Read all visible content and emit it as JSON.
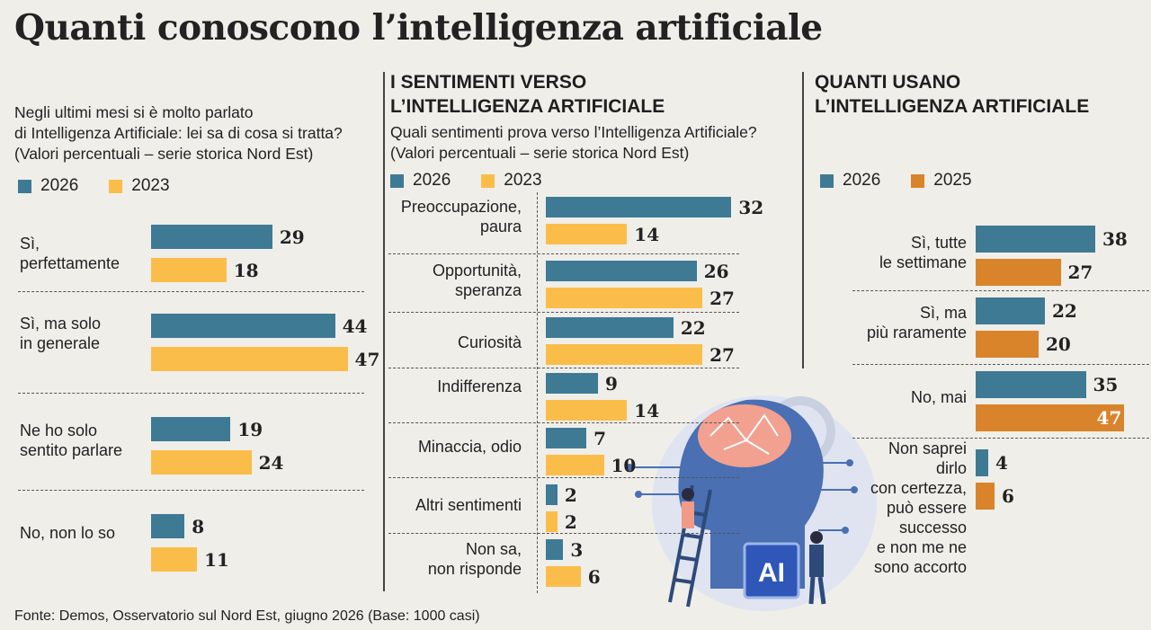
{
  "title": "Quanti conoscono l’intelligenza artificiale",
  "source": "Fonte: Demos, Osservatorio sul Nord Est, giugno 2026 (Base: 1000 casi)",
  "colors": {
    "teal": "#3e7a94",
    "yellow": "#fbbd4a",
    "orange": "#d9832b",
    "bg": "#efeee9"
  },
  "illustration": {
    "label": "AI"
  },
  "chart_data": [
    {
      "type": "bar",
      "orientation": "horizontal",
      "question": "Negli ultimi mesi si è molto parlato\ndi Intelligenza Artificiale: lei sa di cosa si tratta?\n(Valori percentuali – serie storica Nord Est)",
      "legend": [
        "2026",
        "2023"
      ],
      "categories": [
        "Sì,\nperfettamente",
        "Sì, ma solo\nin generale",
        "Ne ho solo\nsentito parlare",
        "No, non lo so"
      ],
      "series": [
        {
          "name": "2026",
          "values": [
            29,
            44,
            19,
            8
          ]
        },
        {
          "name": "2023",
          "values": [
            18,
            47,
            24,
            11
          ]
        }
      ]
    },
    {
      "type": "bar",
      "orientation": "horizontal",
      "title": "I SENTIMENTI VERSO\nL’INTELLIGENZA ARTIFICIALE",
      "question": "Quali sentimenti prova verso l’Intelligenza Artificiale?\n(Valori percentuali – serie storica Nord Est)",
      "legend": [
        "2026",
        "2023"
      ],
      "categories": [
        "Preoccupazione,\npaura",
        "Opportunità,\nsperanza",
        "Curiosità",
        "Indifferenza",
        "Minaccia, odio",
        "Altri sentimenti",
        "Non sa,\nnon risponde"
      ],
      "series": [
        {
          "name": "2026",
          "values": [
            32,
            26,
            22,
            9,
            7,
            2,
            3
          ]
        },
        {
          "name": "2023",
          "values": [
            14,
            27,
            27,
            14,
            10,
            2,
            6
          ]
        }
      ]
    },
    {
      "type": "bar",
      "orientation": "horizontal",
      "title": "QUANTI USANO\nL’INTELLIGENZA ARTIFICIALE",
      "legend": [
        "2026",
        "2025"
      ],
      "categories": [
        "Sì, tutte\nle settimane",
        "Sì, ma\npiù raramente",
        "No, mai",
        "Non saprei\ndirlo\ncon certezza,\npuò essere\nsuccesso\ne non me ne\nsono accorto"
      ],
      "series": [
        {
          "name": "2026",
          "values": [
            38,
            22,
            35,
            4
          ]
        },
        {
          "name": "2025",
          "values": [
            27,
            20,
            47,
            6
          ]
        }
      ]
    }
  ]
}
